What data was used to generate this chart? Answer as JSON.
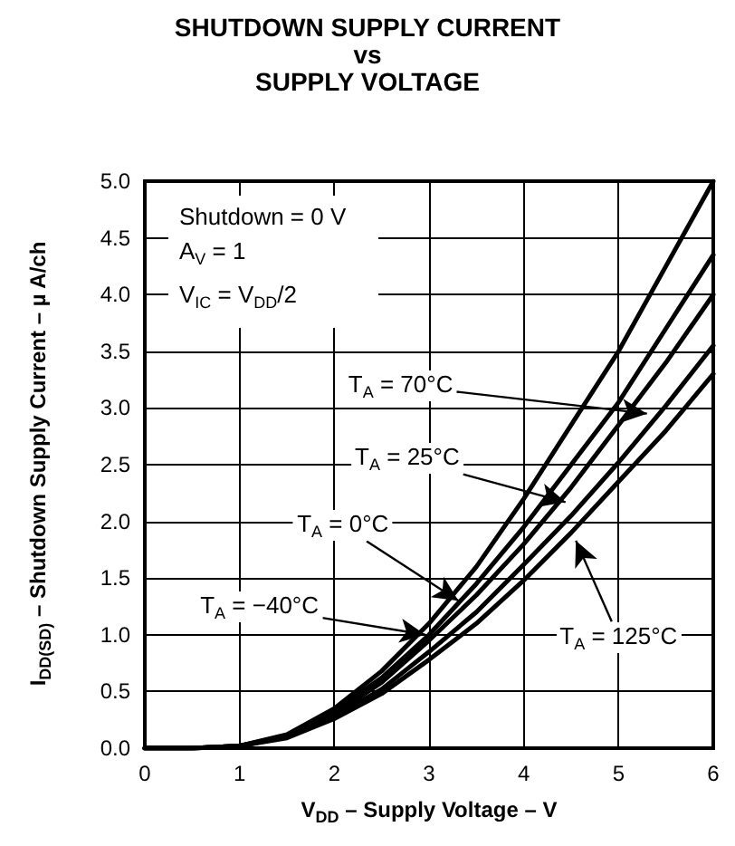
{
  "chart_data": {
    "type": "line",
    "title": "SHUTDOWN SUPPLY CURRENT\nvs\nSUPPLY VOLTAGE",
    "xlabel": "V$_{DD}$ – Supply Voltage – V",
    "ylabel": "I$_{DD(SD)}$ – Shutdown Supply Current – µ A/ch",
    "x": [
      0,
      0.5,
      1,
      1.5,
      2,
      2.5,
      3,
      3.5,
      4,
      4.5,
      5,
      5.5,
      6
    ],
    "series": [
      {
        "color": "#000000",
        "values": [
          0,
          0,
          0.02,
          0.12,
          0.35,
          0.68,
          1.1,
          1.6,
          2.2,
          2.85,
          3.5,
          4.25,
          5.0
        ]
      },
      {
        "color": "#000000",
        "values": [
          0,
          0,
          0.02,
          0.11,
          0.33,
          0.62,
          1.0,
          1.45,
          1.95,
          2.5,
          3.05,
          3.7,
          4.35
        ]
      },
      {
        "color": "#000000",
        "values": [
          0,
          0,
          0.02,
          0.1,
          0.3,
          0.58,
          0.95,
          1.35,
          1.8,
          2.3,
          2.85,
          3.4,
          4.0
        ]
      },
      {
        "color": "#000000",
        "values": [
          0,
          0,
          0.02,
          0.1,
          0.28,
          0.52,
          0.85,
          1.2,
          1.62,
          2.05,
          2.52,
          3.02,
          3.55
        ]
      },
      {
        "color": "#000000",
        "values": [
          0,
          0,
          0.02,
          0.09,
          0.26,
          0.48,
          0.78,
          1.1,
          1.48,
          1.9,
          2.35,
          2.8,
          3.3
        ]
      }
    ],
    "annotations": [
      "Shutdown = 0 V",
      "A$_{V}$ = 1",
      "V$_{IC}$ = V$_{DD}$/2",
      {
        "text": "T$_{A}$ = 70°C",
        "x": 5.3,
        "y": 2.95
      },
      {
        "text": "T$_{A}$ = 25°C",
        "x": 4.44,
        "y": 2.17
      },
      {
        "text": "T$_{A}$ = 0°C",
        "x": 3.31,
        "y": 1.3
      },
      {
        "text": "T$_{A}$ = −40°C",
        "x": 2.96,
        "y": 1.0
      },
      {
        "text": "T$_{A}$ = 125°C",
        "x": 4.55,
        "y": 1.83
      }
    ],
    "xlim": [
      0,
      6
    ],
    "xticks": [
      0,
      1,
      2,
      3,
      4,
      5,
      6
    ],
    "ylim": [
      0,
      5
    ],
    "yticks": [
      {
        "value": 0,
        "label": "0.0"
      },
      {
        "value": 0.5,
        "label": "0.5"
      },
      {
        "value": 1,
        "label": "1.0"
      },
      {
        "value": 1.5,
        "label": "1.5"
      },
      {
        "value": 2,
        "label": "2.0"
      },
      {
        "value": 2.5,
        "label": "2.5"
      },
      {
        "value": 3,
        "label": "3.0"
      },
      {
        "value": 3.5,
        "label": "3.5"
      },
      {
        "value": 4,
        "label": "4.0"
      },
      {
        "value": 4.5,
        "label": "4.5"
      },
      {
        "value": 5,
        "label": "5.0"
      }
    ],
    "grid": true,
    "marker": "none",
    "line_style": "solid"
  }
}
